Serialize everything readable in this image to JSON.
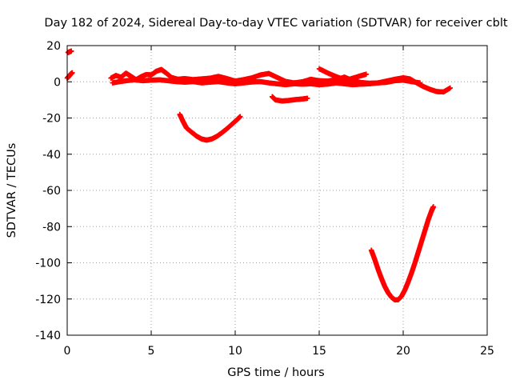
{
  "chart_data": {
    "type": "scatter",
    "title": "Day 182 of 2024, Sidereal Day-to-day VTEC variation (SDTVAR) for receiver cblt",
    "xlabel": "GPS time / hours",
    "ylabel": "SDTVAR / TECUs",
    "xlim": [
      0,
      25
    ],
    "ylim": [
      -140,
      20
    ],
    "xticks": [
      0,
      5,
      10,
      15,
      20,
      25
    ],
    "yticks": [
      -140,
      -120,
      -100,
      -80,
      -60,
      -40,
      -20,
      0,
      20
    ],
    "grid": true,
    "legend": "none",
    "marker": "plus",
    "color": "#ff0000",
    "series": [
      {
        "points": [
          [
            0.05,
            16.2
          ],
          [
            0.15,
            16.6
          ],
          [
            0.25,
            17
          ]
        ]
      },
      {
        "points": [
          [
            0.0,
            2
          ],
          [
            0.1,
            3
          ],
          [
            0.2,
            4.2
          ],
          [
            0.3,
            5
          ]
        ]
      },
      {
        "points": [
          [
            2.6,
            2
          ],
          [
            2.9,
            3.5
          ],
          [
            3.2,
            2.5
          ],
          [
            3.5,
            4.8
          ],
          [
            3.8,
            3
          ],
          [
            4.1,
            1.2
          ],
          [
            4.4,
            2.8
          ],
          [
            4.7,
            4
          ],
          [
            5.0,
            3.8
          ],
          [
            5.3,
            5.8
          ],
          [
            5.6,
            6.8
          ],
          [
            5.9,
            4.8
          ],
          [
            6.2,
            2.4
          ],
          [
            6.6,
            1.4
          ],
          [
            7.0,
            1.8
          ],
          [
            7.5,
            1.2
          ],
          [
            8.0,
            1.6
          ],
          [
            8.5,
            2
          ],
          [
            9.0,
            3
          ],
          [
            9.5,
            1.8
          ],
          [
            10.0,
            0.4
          ],
          [
            10.5,
            1.2
          ],
          [
            11.0,
            2.2
          ],
          [
            11.5,
            3.8
          ],
          [
            12.0,
            4.6
          ],
          [
            12.5,
            2.4
          ],
          [
            13.0,
            0.2
          ],
          [
            13.5,
            -0.6
          ],
          [
            14.0,
            0
          ],
          [
            14.5,
            1.4
          ],
          [
            15.0,
            0.6
          ],
          [
            15.5,
            0.4
          ],
          [
            16.0,
            1.2
          ],
          [
            16.5,
            2.6
          ],
          [
            17.0,
            0.6
          ],
          [
            17.5,
            -0.4
          ],
          [
            18.0,
            -0.8
          ],
          [
            18.5,
            -0.6
          ],
          [
            19.0,
            0.4
          ],
          [
            19.5,
            1.4
          ],
          [
            20.0,
            2.2
          ],
          [
            20.4,
            1.6
          ],
          [
            20.8,
            -0.6
          ],
          [
            21.2,
            -2.6
          ],
          [
            21.6,
            -4.2
          ],
          [
            22.0,
            -5.4
          ],
          [
            22.4,
            -5.6
          ],
          [
            22.8,
            -3.4
          ]
        ]
      },
      {
        "points": [
          [
            2.7,
            -0.6
          ],
          [
            3.0,
            -0.1
          ],
          [
            3.5,
            0.6
          ],
          [
            4.0,
            1.1
          ],
          [
            4.5,
            0.6
          ],
          [
            5.0,
            0.9
          ],
          [
            5.5,
            1.1
          ],
          [
            6.0,
            0.6
          ],
          [
            6.5,
            0.1
          ],
          [
            7.0,
            -0.2
          ],
          [
            7.5,
            0.1
          ],
          [
            8.0,
            -0.6
          ],
          [
            8.5,
            -0.2
          ],
          [
            9.0,
            0.1
          ],
          [
            9.5,
            -0.6
          ],
          [
            10.0,
            -1.1
          ],
          [
            10.5,
            -0.6
          ],
          [
            11.0,
            -0.1
          ],
          [
            11.5,
            0.1
          ],
          [
            12.0,
            -0.6
          ],
          [
            12.5,
            -1.1
          ],
          [
            13.0,
            -1.6
          ],
          [
            13.5,
            -1.1
          ],
          [
            14.0,
            -1.3
          ],
          [
            14.5,
            -1.1
          ],
          [
            15.0,
            -1.6
          ],
          [
            15.5,
            -1.3
          ],
          [
            16.0,
            -0.6
          ],
          [
            16.5,
            -1.1
          ],
          [
            17.0,
            -1.6
          ],
          [
            17.5,
            -1.3
          ],
          [
            18.0,
            -1.1
          ],
          [
            18.5,
            -0.6
          ],
          [
            19.0,
            -0.3
          ],
          [
            19.5,
            0.6
          ],
          [
            20.0,
            0.9
          ],
          [
            20.5,
            0.1
          ],
          [
            21.0,
            -0.6
          ]
        ]
      },
      {
        "points": [
          [
            15.0,
            7.2
          ],
          [
            15.5,
            4.9
          ],
          [
            16.0,
            2.9
          ],
          [
            16.5,
            1.2
          ],
          [
            17.0,
            0.3
          ]
        ]
      },
      {
        "points": [
          [
            16.5,
            0.6
          ],
          [
            17.0,
            2
          ],
          [
            17.5,
            3.4
          ],
          [
            17.8,
            4.2
          ]
        ]
      },
      {
        "points": [
          [
            12.2,
            -8.2
          ],
          [
            12.4,
            -10
          ],
          [
            12.8,
            -10.6
          ],
          [
            13.2,
            -10.3
          ],
          [
            13.6,
            -9.8
          ],
          [
            14.0,
            -9.5
          ],
          [
            14.3,
            -9.1
          ]
        ]
      },
      {
        "points": [
          [
            6.7,
            -18
          ],
          [
            6.9,
            -22
          ],
          [
            7.1,
            -25.5
          ],
          [
            7.4,
            -27.8
          ],
          [
            7.7,
            -30
          ],
          [
            8.0,
            -31.6
          ],
          [
            8.3,
            -32.2
          ],
          [
            8.6,
            -31.6
          ],
          [
            8.9,
            -30.2
          ],
          [
            9.2,
            -28.2
          ],
          [
            9.5,
            -26
          ],
          [
            9.8,
            -23.5
          ],
          [
            10.1,
            -21
          ],
          [
            10.3,
            -19.2
          ]
        ]
      },
      {
        "points": [
          [
            18.1,
            -93
          ],
          [
            18.3,
            -98
          ],
          [
            18.5,
            -103.5
          ],
          [
            18.7,
            -108.5
          ],
          [
            18.9,
            -113
          ],
          [
            19.1,
            -116.5
          ],
          [
            19.3,
            -119
          ],
          [
            19.5,
            -120.5
          ],
          [
            19.7,
            -120.4
          ],
          [
            19.9,
            -118.5
          ],
          [
            20.1,
            -115
          ],
          [
            20.3,
            -110.5
          ],
          [
            20.5,
            -105.5
          ],
          [
            20.7,
            -100
          ],
          [
            20.9,
            -94
          ],
          [
            21.1,
            -88
          ],
          [
            21.3,
            -82
          ],
          [
            21.5,
            -76
          ],
          [
            21.7,
            -71
          ],
          [
            21.8,
            -69
          ]
        ]
      }
    ]
  }
}
